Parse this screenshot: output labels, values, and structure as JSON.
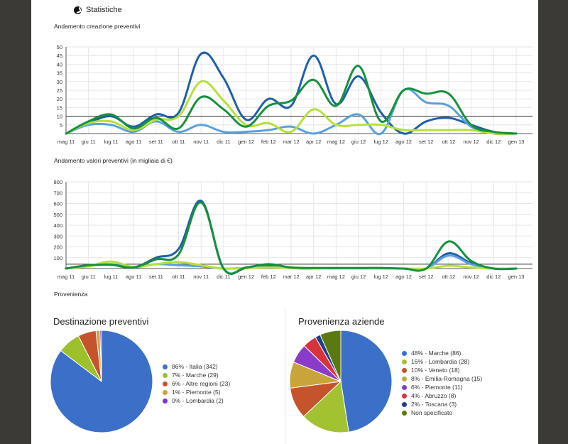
{
  "header": {
    "title": "Statistiche"
  },
  "sections": {
    "chart1_title": "Andamento creazione preventivi",
    "chart2_title": "Andamento valori preventivi (in migliaia di €)",
    "provenienza": "Provenienza"
  },
  "chart_data": [
    {
      "type": "line",
      "title": "Andamento creazione preventivi",
      "categories": [
        "mag 11",
        "giu 11",
        "lug 11",
        "ago 11",
        "set 11",
        "ott 11",
        "nov 11",
        "dic 11",
        "gen 12",
        "feb 12",
        "mar 12",
        "apr 12",
        "mag 12",
        "giu 12",
        "lug 12",
        "ago 12",
        "set 12",
        "ott 12",
        "nov 12",
        "dic 12",
        "gen 13"
      ],
      "yticks": [
        5,
        10,
        15,
        20,
        25,
        30,
        35,
        40,
        45,
        50
      ],
      "ylim": [
        0,
        50
      ],
      "reference_line": 10,
      "series": [
        {
          "color": "#1f5fa8",
          "values": [
            0,
            6,
            10,
            4,
            11,
            12,
            46,
            32,
            8,
            20,
            16,
            45,
            17,
            33,
            12,
            0,
            7,
            9,
            5,
            1,
            0
          ]
        },
        {
          "color": "#5aa0e0",
          "values": [
            0,
            5,
            5,
            1,
            7,
            1,
            5,
            1,
            1,
            2,
            4,
            0,
            5,
            11,
            0,
            25,
            18,
            16,
            4,
            0,
            0
          ]
        },
        {
          "color": "#b6e03a",
          "values": [
            0,
            6,
            7,
            2,
            8,
            10,
            30,
            19,
            5,
            6,
            1,
            14,
            5,
            5,
            5,
            2,
            2,
            2,
            2,
            0,
            0
          ]
        },
        {
          "color": "#16913c",
          "values": [
            0,
            7,
            11,
            3,
            9,
            3,
            21,
            14,
            4,
            16,
            19,
            31,
            16,
            39,
            7,
            25,
            23,
            23,
            5,
            1,
            0
          ]
        }
      ],
      "grid": true
    },
    {
      "type": "line",
      "title": "Andamento valori preventivi (in migliaia di €)",
      "categories": [
        "mag 11",
        "giu 11",
        "lug 11",
        "ago 11",
        "set 11",
        "ott 11",
        "nov 11",
        "dic 11",
        "gen 12",
        "feb 12",
        "mar 12",
        "apr 12",
        "mag 12",
        "giu 12",
        "lug 12",
        "ago 12",
        "set 12",
        "ott 12",
        "nov 12",
        "dic 12",
        "gen 13"
      ],
      "yticks": [
        100,
        200,
        300,
        400,
        500,
        600,
        700,
        800
      ],
      "ylim": [
        0,
        800
      ],
      "reference_line": 40,
      "series": [
        {
          "color": "#1f5fa8",
          "values": [
            0,
            30,
            35,
            10,
            100,
            180,
            625,
            0,
            5,
            20,
            5,
            0,
            0,
            0,
            0,
            0,
            0,
            140,
            50,
            0,
            0
          ]
        },
        {
          "color": "#5aa0e0",
          "values": [
            0,
            25,
            40,
            10,
            40,
            30,
            20,
            0,
            5,
            10,
            5,
            0,
            0,
            0,
            0,
            0,
            0,
            120,
            40,
            0,
            0
          ]
        },
        {
          "color": "#b6e03a",
          "values": [
            0,
            20,
            65,
            15,
            40,
            60,
            30,
            0,
            5,
            10,
            5,
            0,
            0,
            0,
            0,
            0,
            0,
            25,
            10,
            0,
            0
          ]
        },
        {
          "color": "#16913c",
          "values": [
            0,
            30,
            35,
            10,
            85,
            130,
            610,
            0,
            10,
            40,
            10,
            5,
            5,
            5,
            5,
            0,
            0,
            250,
            70,
            0,
            0
          ]
        }
      ],
      "grid": true
    },
    {
      "type": "pie",
      "title": "Destinazione preventivi",
      "legend": "right",
      "slices": [
        {
          "label": "86% - Italia (342)",
          "value": 342,
          "color": "#3c6fc8"
        },
        {
          "label": "7% - Marche (29)",
          "value": 29,
          "color": "#9dc12c"
        },
        {
          "label": "6% - Altre regioni (23)",
          "value": 23,
          "color": "#c5542c"
        },
        {
          "label": "1% - Piemonte (5)",
          "value": 5,
          "color": "#c7a53a"
        },
        {
          "label": "0% - Lombardia (2)",
          "value": 2,
          "color": "#7a36c8"
        }
      ]
    },
    {
      "type": "pie",
      "title": "Provenienza aziende",
      "legend": "right",
      "slices": [
        {
          "label": "48% - Marche (86)",
          "value": 86,
          "color": "#3c6fc8"
        },
        {
          "label": "16% - Lombardia (28)",
          "value": 28,
          "color": "#a3c232"
        },
        {
          "label": "10% - Veneto (18)",
          "value": 18,
          "color": "#c5542c"
        },
        {
          "label": "8% - Emilia-Romagna (15)",
          "value": 15,
          "color": "#c7a53a"
        },
        {
          "label": "6% - Piemonte (11)",
          "value": 11,
          "color": "#8a3cc8"
        },
        {
          "label": "4% - Abruzzo (8)",
          "value": 8,
          "color": "#d8323a"
        },
        {
          "label": "2% - Toscana (3)",
          "value": 3,
          "color": "#1e3e8a"
        },
        {
          "label": "Non specificato",
          "value": 12,
          "color": "#5a7a10"
        }
      ]
    }
  ]
}
